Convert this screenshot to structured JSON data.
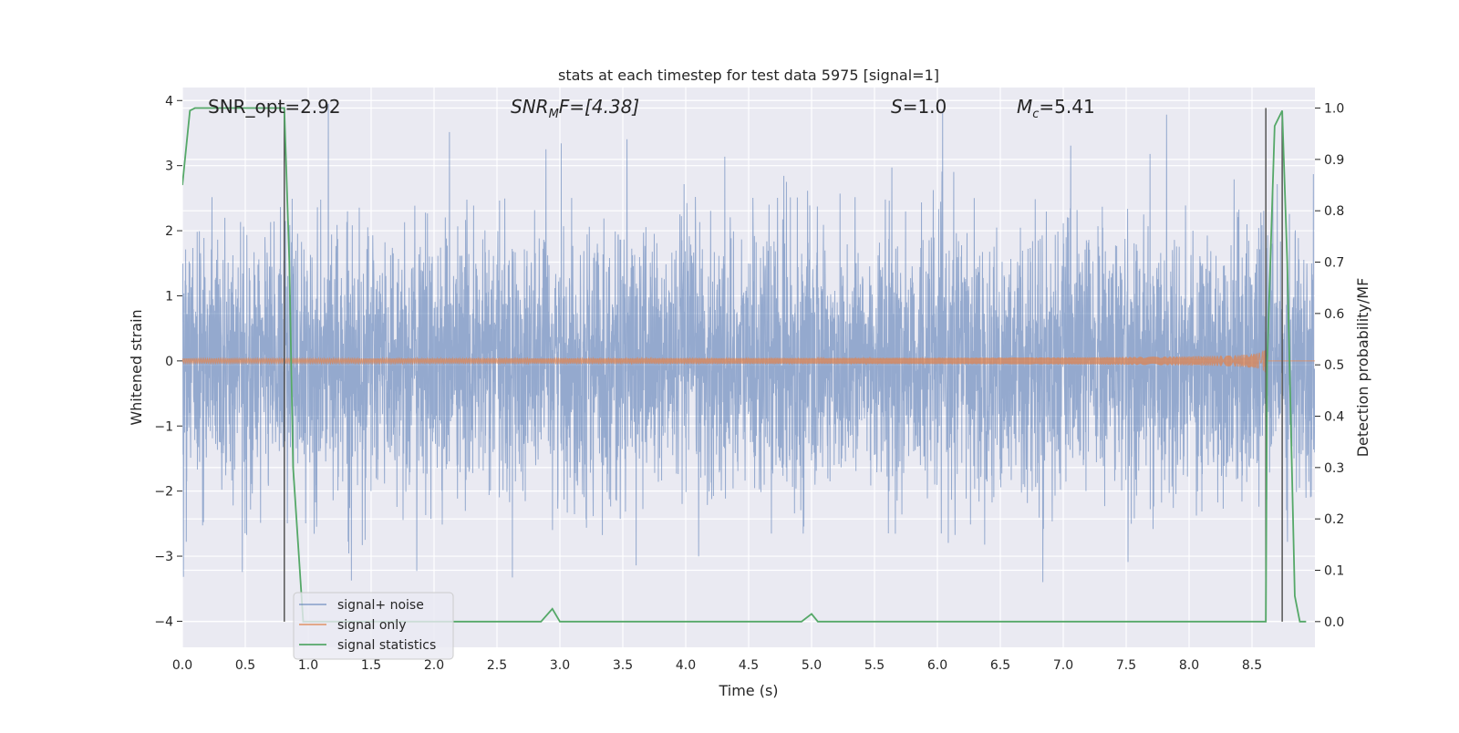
{
  "chart_data": {
    "type": "line",
    "title": "stats at each timestep for test data 5975 [signal=1]",
    "xlabel": "Time (s)",
    "ylabel": "Whitened strain",
    "ylabel_right": "Detection probability/MF",
    "xlim": [
      0.0,
      9.0
    ],
    "ylim": [
      -4.4,
      4.2
    ],
    "ylim_right": [
      -0.05,
      1.04
    ],
    "xticks": [
      "0.0",
      "0.5",
      "1.0",
      "1.5",
      "2.0",
      "2.5",
      "3.0",
      "3.5",
      "4.0",
      "4.5",
      "5.0",
      "5.5",
      "6.0",
      "6.5",
      "7.0",
      "7.5",
      "8.0",
      "8.5"
    ],
    "yticks": [
      "4",
      "3",
      "2",
      "1",
      "0",
      "−1",
      "−2",
      "−3",
      "−4"
    ],
    "yticks_right": [
      "1.0",
      "0.9",
      "0.8",
      "0.7",
      "0.6",
      "0.5",
      "0.4",
      "0.3",
      "0.2",
      "0.1",
      "0.0"
    ],
    "grid": true,
    "annotations": {
      "snr_opt": "SNR_opt=2.92",
      "snr_mf_base": "SNR",
      "snr_mf_sub": "M",
      "snr_mf_rest": "F=[4.38]",
      "s_label": "S",
      "s_value": "=1.0",
      "mc_base": "M",
      "mc_sub": "c",
      "mc_value": "=5.41"
    },
    "legend": {
      "placement": "lower-left",
      "entries": [
        "signal+ noise",
        "signal only",
        "signal statistics"
      ]
    },
    "series": [
      {
        "name": "signal+ noise",
        "color": "#4c72b0",
        "description_type": "noise",
        "sigma": 1.0,
        "sample_rate_approx": 2048
      },
      {
        "name": "signal only",
        "color": "#dd8452",
        "description_type": "chirp",
        "amplitude_end": 0.25,
        "merger_time": 8.62
      },
      {
        "name": "signal statistics",
        "color": "#55a868",
        "axis": "right",
        "x": [
          0.0,
          0.06,
          0.1,
          0.2,
          0.3,
          0.4,
          0.5,
          0.6,
          0.7,
          0.8,
          0.81,
          0.85,
          0.88,
          0.92,
          0.96,
          1.0,
          1.5,
          2.0,
          2.5,
          2.85,
          2.94,
          3.0,
          3.5,
          4.0,
          4.5,
          4.92,
          5.0,
          5.05,
          5.1,
          5.5,
          6.0,
          6.5,
          7.0,
          7.5,
          8.0,
          8.5,
          8.61,
          8.62,
          8.68,
          8.74,
          8.78,
          8.84,
          8.88,
          8.93
        ],
        "values": [
          0.85,
          0.995,
          1.0,
          1.0,
          1.0,
          1.0,
          1.0,
          1.0,
          1.0,
          1.0,
          1.0,
          0.7,
          0.3,
          0.15,
          0.0,
          0.0,
          0.0,
          0.0,
          0.0,
          0.0,
          0.025,
          0.0,
          0.0,
          0.0,
          0.0,
          0.0,
          0.015,
          0.0,
          0.0,
          0.0,
          0.0,
          0.0,
          0.0,
          0.0,
          0.0,
          0.0,
          0.0,
          0.5,
          0.965,
          0.995,
          0.7,
          0.05,
          0.0,
          0.0
        ]
      }
    ],
    "vertical_lines": [
      0.81,
      8.61,
      8.74
    ],
    "vertical_line_ranges": [
      [
        0.0,
        1.0
      ],
      [
        0.0,
        1.0
      ],
      [
        0.0,
        0.995
      ]
    ]
  }
}
